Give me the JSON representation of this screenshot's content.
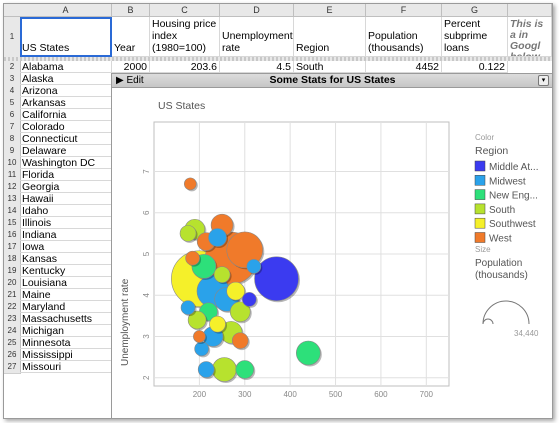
{
  "columns": [
    "A",
    "B",
    "C",
    "D",
    "E",
    "F",
    "G"
  ],
  "header_row": {
    "num": "1",
    "cells": [
      "US States",
      "Year",
      "Housing price index (1980=100)",
      "Unemployment rate",
      "Region",
      "Population (thousands)",
      "Percent subprime loans"
    ],
    "note": "This is a in Googl below to"
  },
  "first_row": {
    "num": "2",
    "state": "Alabama",
    "year": "2000",
    "hpi": "203.6",
    "unemp": "4.5",
    "region": "South",
    "pop": "4452",
    "subprime": "0.122"
  },
  "states": [
    "Alaska",
    "Arizona",
    "Arkansas",
    "California",
    "Colorado",
    "Connecticut",
    "Delaware",
    "Washington DC",
    "Florida",
    "Georgia",
    "Hawaii",
    "Idaho",
    "Illinois",
    "Indiana",
    "Iowa",
    "Kansas",
    "Kentucky",
    "Louisiana",
    "Maine",
    "Maryland",
    "Massachusetts",
    "Michigan",
    "Minnesota",
    "Mississippi",
    "Missouri"
  ],
  "gadget": {
    "edit_label": "Edit",
    "title": "Some Stats for US States",
    "subtitle": "US States",
    "ylabel": "Unemployment rate",
    "legend_color_title": "Color",
    "legend_region_title": "Region",
    "legend": [
      {
        "label": "Middle At...",
        "color": "#3b3bf0"
      },
      {
        "label": "Midwest",
        "color": "#2aa2ea"
      },
      {
        "label": "New Eng...",
        "color": "#2de07a"
      },
      {
        "label": "South",
        "color": "#b7e22e"
      },
      {
        "label": "Southwest",
        "color": "#f5f02a"
      },
      {
        "label": "West",
        "color": "#f07a2a"
      }
    ],
    "size_title": "Size",
    "size_label": "Population (thousands)",
    "size_value": "34,440"
  },
  "chart_data": {
    "type": "scatter",
    "title": "US States",
    "xlabel": "",
    "ylabel": "Unemployment rate",
    "xlim": [
      100,
      750
    ],
    "ylim": [
      1.8,
      8.2
    ],
    "x_ticks": [
      200,
      300,
      400,
      500,
      600,
      700
    ],
    "y_ticks": [
      2,
      3,
      4,
      5,
      6,
      7
    ],
    "grid": true,
    "legend_position": "right",
    "points": [
      {
        "x": 180,
        "y": 6.7,
        "r": 6,
        "c": 5
      },
      {
        "x": 370,
        "y": 4.4,
        "r": 22,
        "c": 0
      },
      {
        "x": 440,
        "y": 2.6,
        "r": 12,
        "c": 2
      },
      {
        "x": 200,
        "y": 4.4,
        "r": 28,
        "c": 4
      },
      {
        "x": 270,
        "y": 4.9,
        "r": 26,
        "c": 5
      },
      {
        "x": 300,
        "y": 5.1,
        "r": 18,
        "c": 5
      },
      {
        "x": 230,
        "y": 4.1,
        "r": 16,
        "c": 1
      },
      {
        "x": 190,
        "y": 5.6,
        "r": 10,
        "c": 3
      },
      {
        "x": 175,
        "y": 5.5,
        "r": 8,
        "c": 3
      },
      {
        "x": 215,
        "y": 5.3,
        "r": 9,
        "c": 5
      },
      {
        "x": 250,
        "y": 5.7,
        "r": 11,
        "c": 5
      },
      {
        "x": 240,
        "y": 5.4,
        "r": 9,
        "c": 1
      },
      {
        "x": 210,
        "y": 4.7,
        "r": 12,
        "c": 2
      },
      {
        "x": 260,
        "y": 3.9,
        "r": 12,
        "c": 1
      },
      {
        "x": 290,
        "y": 3.6,
        "r": 10,
        "c": 3
      },
      {
        "x": 220,
        "y": 3.6,
        "r": 9,
        "c": 2
      },
      {
        "x": 195,
        "y": 3.4,
        "r": 9,
        "c": 3
      },
      {
        "x": 270,
        "y": 3.1,
        "r": 11,
        "c": 3
      },
      {
        "x": 290,
        "y": 2.9,
        "r": 8,
        "c": 5
      },
      {
        "x": 230,
        "y": 3.0,
        "r": 10,
        "c": 1
      },
      {
        "x": 205,
        "y": 2.7,
        "r": 7,
        "c": 1
      },
      {
        "x": 255,
        "y": 2.2,
        "r": 12,
        "c": 3
      },
      {
        "x": 300,
        "y": 2.2,
        "r": 9,
        "c": 2
      },
      {
        "x": 215,
        "y": 2.2,
        "r": 8,
        "c": 1
      },
      {
        "x": 175,
        "y": 3.7,
        "r": 7,
        "c": 1
      },
      {
        "x": 240,
        "y": 3.3,
        "r": 8,
        "c": 4
      },
      {
        "x": 310,
        "y": 3.9,
        "r": 7,
        "c": 0
      },
      {
        "x": 185,
        "y": 4.9,
        "r": 7,
        "c": 5
      },
      {
        "x": 280,
        "y": 4.1,
        "r": 9,
        "c": 4
      },
      {
        "x": 320,
        "y": 4.7,
        "r": 7,
        "c": 1
      },
      {
        "x": 250,
        "y": 4.5,
        "r": 8,
        "c": 3
      },
      {
        "x": 200,
        "y": 3.0,
        "r": 6,
        "c": 5
      }
    ]
  }
}
